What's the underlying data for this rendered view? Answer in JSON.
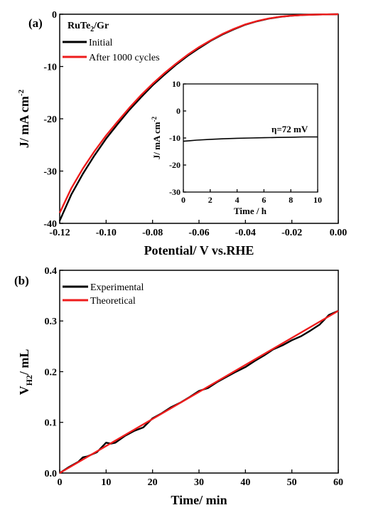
{
  "panels": {
    "a": {
      "label": "(a)"
    },
    "b": {
      "label": "(b)"
    }
  },
  "chart_data": [
    {
      "type": "line",
      "panel": "a",
      "xlabel": "Potential/ V vs.RHE",
      "ylabel": "J/ mA cm",
      "ylabel_sup": "-2",
      "xlim": [
        -0.12,
        0.0
      ],
      "ylim": [
        -40,
        0
      ],
      "xticks": [
        -0.12,
        -0.1,
        -0.08,
        -0.06,
        -0.04,
        -0.02,
        0.0
      ],
      "xtick_labels": [
        "-0.12",
        "-0.10",
        "-0.08",
        "-0.06",
        "-0.04",
        "-0.02",
        "0.00"
      ],
      "yticks": [
        -40,
        -30,
        -20,
        -10,
        0
      ],
      "ytick_labels": [
        "-40",
        "-30",
        "-20",
        "-10",
        "0"
      ],
      "legend": {
        "title_main": "RuTe",
        "title_sub": "2",
        "title_rest": "/Gr",
        "placement": "top-left"
      },
      "series": [
        {
          "name": "Initial",
          "color": "#000000",
          "x": [
            -0.12,
            -0.115,
            -0.11,
            -0.105,
            -0.1,
            -0.095,
            -0.09,
            -0.085,
            -0.08,
            -0.075,
            -0.07,
            -0.065,
            -0.06,
            -0.055,
            -0.05,
            -0.045,
            -0.04,
            -0.035,
            -0.03,
            -0.025,
            -0.02,
            -0.015,
            -0.01,
            -0.005,
            0.0
          ],
          "y": [
            -39.5,
            -34.5,
            -30.5,
            -27.0,
            -23.8,
            -21.0,
            -18.3,
            -15.9,
            -13.6,
            -11.6,
            -9.7,
            -8.0,
            -6.5,
            -5.1,
            -3.9,
            -2.9,
            -2.0,
            -1.35,
            -0.85,
            -0.5,
            -0.28,
            -0.15,
            -0.08,
            -0.03,
            0.0
          ]
        },
        {
          "name": "After 1000 cycles",
          "color": "#ee1c1c",
          "x": [
            -0.12,
            -0.115,
            -0.11,
            -0.105,
            -0.1,
            -0.095,
            -0.09,
            -0.085,
            -0.08,
            -0.075,
            -0.07,
            -0.065,
            -0.06,
            -0.055,
            -0.05,
            -0.045,
            -0.04,
            -0.035,
            -0.03,
            -0.025,
            -0.02,
            -0.015,
            -0.01,
            -0.005,
            0.0
          ],
          "y": [
            -38.0,
            -33.3,
            -29.5,
            -26.2,
            -23.2,
            -20.5,
            -17.9,
            -15.5,
            -13.3,
            -11.3,
            -9.5,
            -7.8,
            -6.3,
            -5.0,
            -3.8,
            -2.8,
            -1.95,
            -1.3,
            -0.82,
            -0.48,
            -0.27,
            -0.14,
            -0.07,
            -0.03,
            0.0
          ]
        }
      ],
      "inset": {
        "type": "line",
        "xlabel": "Time / h",
        "ylabel": "J/ mA cm",
        "ylabel_sup": "-2",
        "xlim": [
          0,
          10
        ],
        "ylim": [
          -30,
          10
        ],
        "xticks": [
          0,
          2,
          4,
          6,
          8,
          10
        ],
        "xtick_labels": [
          "0",
          "2",
          "4",
          "6",
          "8",
          "10"
        ],
        "yticks": [
          -30,
          -20,
          -10,
          0,
          10
        ],
        "ytick_labels": [
          "-30",
          "-20",
          "-10",
          "0",
          "10"
        ],
        "annotation": "η=72 mV",
        "series": [
          {
            "color": "#000000",
            "x": [
              0,
              0.5,
              1,
              2,
              3,
              4,
              5,
              6,
              7,
              8,
              9,
              10
            ],
            "y": [
              -11.2,
              -11.0,
              -10.8,
              -10.5,
              -10.3,
              -10.1,
              -10.0,
              -9.9,
              -9.8,
              -9.7,
              -9.6,
              -9.6
            ]
          }
        ]
      }
    },
    {
      "type": "line",
      "panel": "b",
      "xlabel": "Time/ min",
      "ylabel": "V",
      "ylabel_sub": "H2",
      "ylabel_rest": "/ mL",
      "xlim": [
        0,
        60
      ],
      "ylim": [
        0.0,
        0.4
      ],
      "xticks": [
        0,
        10,
        20,
        30,
        40,
        50,
        60
      ],
      "xtick_labels": [
        "0",
        "10",
        "20",
        "30",
        "40",
        "50",
        "60"
      ],
      "yticks": [
        0.0,
        0.1,
        0.2,
        0.3,
        0.4
      ],
      "ytick_labels": [
        "0.0",
        "0.1",
        "0.2",
        "0.3",
        "0.4"
      ],
      "legend_placement": "top-left",
      "series": [
        {
          "name": "Experimental",
          "color": "#000000",
          "x": [
            0,
            2,
            4,
            5,
            6,
            8,
            10,
            11,
            12,
            14,
            16,
            18,
            20,
            22,
            24,
            26,
            28,
            30,
            32,
            34,
            36,
            38,
            40,
            42,
            44,
            46,
            48,
            50,
            52,
            54,
            56,
            58,
            60
          ],
          "y": [
            0.0,
            0.012,
            0.022,
            0.031,
            0.033,
            0.041,
            0.06,
            0.058,
            0.06,
            0.073,
            0.083,
            0.09,
            0.108,
            0.118,
            0.13,
            0.139,
            0.15,
            0.162,
            0.168,
            0.18,
            0.19,
            0.2,
            0.209,
            0.221,
            0.232,
            0.244,
            0.252,
            0.262,
            0.27,
            0.281,
            0.293,
            0.312,
            0.32
          ]
        },
        {
          "name": "Theoretical",
          "color": "#ee1c1c",
          "x": [
            0,
            60
          ],
          "y": [
            0.0,
            0.32
          ]
        }
      ]
    }
  ]
}
